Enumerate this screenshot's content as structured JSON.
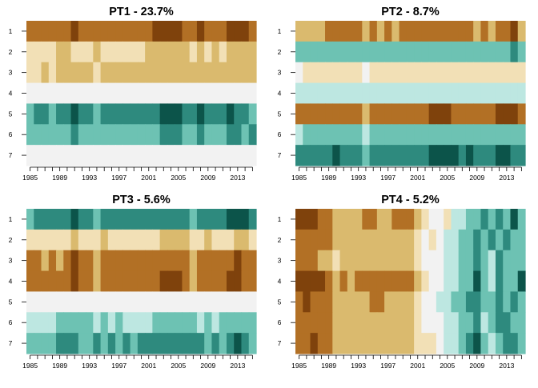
{
  "palette": {
    "1": "#7F420C",
    "2": "#B27025",
    "3": "#DABA6E",
    "4": "#F2E0B6",
    "5": "#F2F2F2",
    "6": "#BDE7E1",
    "7": "#6DC2B3",
    "8": "#2E8A7E",
    "9": "#0C544A"
  },
  "chart_data": [
    {
      "type": "heatmap",
      "title": "PT1 - 23.7%",
      "rows": [
        "1",
        "2",
        "3",
        "4",
        "5",
        "6",
        "7"
      ],
      "years": [
        1985,
        1986,
        1987,
        1988,
        1989,
        1990,
        1991,
        1992,
        1993,
        1994,
        1995,
        1996,
        1997,
        1998,
        1999,
        2000,
        2001,
        2002,
        2003,
        2004,
        2005,
        2006,
        2007,
        2008,
        2009,
        2010,
        2011,
        2012,
        2013,
        2014,
        2015
      ],
      "year_labels": [
        "1985",
        "1989",
        "1993",
        "1997",
        "2001",
        "2005",
        "2009",
        "2013"
      ],
      "cells": [
        [
          2,
          2,
          2,
          2,
          2,
          2,
          1,
          2,
          2,
          2,
          2,
          2,
          2,
          2,
          2,
          2,
          2,
          1,
          1,
          1,
          1,
          2,
          2,
          1,
          2,
          2,
          2,
          1,
          1,
          1,
          2
        ],
        [
          4,
          4,
          4,
          4,
          3,
          3,
          4,
          4,
          4,
          3,
          4,
          4,
          4,
          4,
          4,
          4,
          3,
          3,
          3,
          3,
          3,
          3,
          4,
          3,
          4,
          3,
          4,
          3,
          3,
          3,
          3
        ],
        [
          4,
          4,
          3,
          4,
          3,
          3,
          3,
          3,
          3,
          4,
          3,
          3,
          3,
          3,
          3,
          3,
          3,
          3,
          3,
          3,
          3,
          3,
          3,
          3,
          3,
          3,
          3,
          3,
          3,
          3,
          3
        ],
        [
          5,
          5,
          5,
          5,
          5,
          5,
          5,
          5,
          5,
          5,
          5,
          5,
          5,
          5,
          5,
          5,
          5,
          5,
          5,
          5,
          5,
          5,
          5,
          5,
          5,
          5,
          5,
          5,
          5,
          5,
          5
        ],
        [
          7,
          8,
          8,
          7,
          8,
          8,
          9,
          8,
          8,
          7,
          8,
          8,
          8,
          8,
          8,
          8,
          8,
          8,
          9,
          9,
          9,
          8,
          8,
          9,
          8,
          8,
          8,
          9,
          8,
          8,
          7
        ],
        [
          7,
          7,
          7,
          7,
          7,
          7,
          8,
          7,
          7,
          7,
          7,
          7,
          7,
          7,
          7,
          7,
          7,
          7,
          8,
          8,
          8,
          7,
          7,
          8,
          7,
          7,
          7,
          8,
          8,
          7,
          8
        ],
        [
          5,
          5,
          5,
          5,
          5,
          5,
          5,
          5,
          5,
          5,
          5,
          5,
          5,
          5,
          5,
          5,
          5,
          5,
          5,
          5,
          5,
          5,
          5,
          5,
          5,
          5,
          5,
          5,
          5,
          5,
          5
        ]
      ]
    },
    {
      "type": "heatmap",
      "title": "PT2 - 8.7%",
      "rows": [
        "1",
        "2",
        "3",
        "4",
        "5",
        "6",
        "7"
      ],
      "years": [
        1985,
        1986,
        1987,
        1988,
        1989,
        1990,
        1991,
        1992,
        1993,
        1994,
        1995,
        1996,
        1997,
        1998,
        1999,
        2000,
        2001,
        2002,
        2003,
        2004,
        2005,
        2006,
        2007,
        2008,
        2009,
        2010,
        2011,
        2012,
        2013,
        2014,
        2015
      ],
      "year_labels": [
        "1985",
        "1989",
        "1993",
        "1997",
        "2001",
        "2005",
        "2009",
        "2013"
      ],
      "cells": [
        [
          3,
          3,
          3,
          3,
          2,
          2,
          2,
          2,
          2,
          3,
          2,
          3,
          2,
          3,
          2,
          2,
          2,
          2,
          2,
          2,
          2,
          2,
          2,
          2,
          3,
          2,
          3,
          2,
          2,
          1,
          3
        ],
        [
          7,
          7,
          7,
          7,
          7,
          7,
          7,
          7,
          7,
          7,
          7,
          7,
          7,
          7,
          7,
          7,
          7,
          7,
          7,
          7,
          7,
          7,
          7,
          7,
          7,
          7,
          7,
          7,
          7,
          8,
          7
        ],
        [
          5,
          4,
          4,
          4,
          4,
          4,
          4,
          4,
          4,
          5,
          4,
          4,
          4,
          4,
          4,
          4,
          4,
          4,
          4,
          4,
          4,
          4,
          4,
          4,
          4,
          4,
          4,
          4,
          4,
          4,
          4
        ],
        [
          6,
          6,
          6,
          6,
          6,
          6,
          6,
          6,
          6,
          6,
          6,
          6,
          6,
          6,
          6,
          6,
          6,
          6,
          6,
          6,
          6,
          6,
          6,
          6,
          6,
          6,
          6,
          6,
          6,
          6,
          6
        ],
        [
          2,
          2,
          2,
          2,
          2,
          2,
          2,
          2,
          2,
          3,
          2,
          2,
          2,
          2,
          2,
          2,
          2,
          2,
          1,
          1,
          1,
          2,
          2,
          2,
          2,
          2,
          2,
          1,
          1,
          1,
          2
        ],
        [
          6,
          7,
          7,
          7,
          7,
          7,
          7,
          7,
          7,
          6,
          7,
          7,
          7,
          7,
          7,
          7,
          7,
          7,
          7,
          7,
          7,
          7,
          7,
          7,
          7,
          7,
          7,
          7,
          7,
          7,
          7
        ],
        [
          8,
          8,
          8,
          8,
          8,
          9,
          8,
          8,
          8,
          7,
          8,
          8,
          8,
          8,
          8,
          8,
          8,
          8,
          9,
          9,
          9,
          9,
          8,
          9,
          8,
          8,
          8,
          9,
          9,
          8,
          8
        ]
      ]
    },
    {
      "type": "heatmap",
      "title": "PT3 - 5.6%",
      "rows": [
        "1",
        "2",
        "3",
        "4",
        "5",
        "6",
        "7"
      ],
      "years": [
        1985,
        1986,
        1987,
        1988,
        1989,
        1990,
        1991,
        1992,
        1993,
        1994,
        1995,
        1996,
        1997,
        1998,
        1999,
        2000,
        2001,
        2002,
        2003,
        2004,
        2005,
        2006,
        2007,
        2008,
        2009,
        2010,
        2011,
        2012,
        2013,
        2014,
        2015
      ],
      "year_labels": [
        "1985",
        "1989",
        "1993",
        "1997",
        "2001",
        "2005",
        "2009",
        "2013"
      ],
      "cells": [
        [
          7,
          8,
          8,
          8,
          8,
          8,
          9,
          8,
          8,
          7,
          8,
          8,
          8,
          8,
          8,
          8,
          8,
          8,
          8,
          8,
          8,
          8,
          7,
          8,
          8,
          8,
          8,
          9,
          9,
          9,
          8
        ],
        [
          4,
          4,
          4,
          4,
          4,
          4,
          3,
          4,
          4,
          4,
          3,
          4,
          4,
          4,
          4,
          4,
          4,
          4,
          3,
          3,
          3,
          3,
          4,
          4,
          3,
          4,
          4,
          4,
          3,
          3,
          4
        ],
        [
          2,
          2,
          3,
          2,
          3,
          2,
          1,
          2,
          2,
          3,
          2,
          2,
          2,
          2,
          2,
          2,
          2,
          2,
          2,
          2,
          2,
          2,
          3,
          2,
          2,
          2,
          2,
          2,
          1,
          2,
          2
        ],
        [
          2,
          2,
          2,
          2,
          2,
          2,
          1,
          2,
          2,
          3,
          2,
          2,
          2,
          2,
          2,
          2,
          2,
          2,
          1,
          1,
          1,
          2,
          3,
          2,
          2,
          2,
          2,
          1,
          1,
          2,
          2
        ],
        [
          5,
          5,
          5,
          5,
          5,
          5,
          5,
          5,
          5,
          5,
          5,
          5,
          5,
          5,
          5,
          5,
          5,
          5,
          5,
          5,
          5,
          5,
          5,
          5,
          5,
          5,
          5,
          5,
          5,
          5,
          5
        ],
        [
          6,
          6,
          6,
          6,
          7,
          7,
          7,
          7,
          7,
          6,
          7,
          6,
          7,
          6,
          6,
          6,
          6,
          7,
          7,
          7,
          7,
          7,
          7,
          6,
          7,
          6,
          7,
          7,
          7,
          7,
          7
        ],
        [
          7,
          7,
          7,
          7,
          8,
          8,
          8,
          7,
          7,
          8,
          7,
          8,
          7,
          8,
          7,
          8,
          8,
          8,
          8,
          8,
          8,
          8,
          8,
          8,
          7,
          8,
          7,
          8,
          9,
          8,
          7
        ]
      ]
    },
    {
      "type": "heatmap",
      "title": "PT4 - 5.2%",
      "rows": [
        "1",
        "2",
        "3",
        "4",
        "5",
        "6",
        "7"
      ],
      "years": [
        1985,
        1986,
        1987,
        1988,
        1989,
        1990,
        1991,
        1992,
        1993,
        1994,
        1995,
        1996,
        1997,
        1998,
        1999,
        2000,
        2001,
        2002,
        2003,
        2004,
        2005,
        2006,
        2007,
        2008,
        2009,
        2010,
        2011,
        2012,
        2013,
        2014,
        2015
      ],
      "year_labels": [
        "1985",
        "1989",
        "1993",
        "1997",
        "2001",
        "2005",
        "2009",
        "2013"
      ],
      "cells": [
        [
          1,
          1,
          1,
          2,
          2,
          3,
          3,
          3,
          3,
          2,
          2,
          3,
          3,
          2,
          2,
          2,
          3,
          4,
          5,
          5,
          4,
          6,
          6,
          7,
          7,
          8,
          7,
          8,
          7,
          9,
          7
        ],
        [
          2,
          2,
          2,
          2,
          2,
          3,
          3,
          3,
          3,
          3,
          3,
          3,
          3,
          3,
          3,
          3,
          4,
          5,
          4,
          5,
          6,
          6,
          7,
          7,
          8,
          7,
          8,
          7,
          8,
          7,
          7
        ],
        [
          2,
          2,
          2,
          3,
          3,
          4,
          3,
          3,
          3,
          3,
          3,
          3,
          3,
          3,
          3,
          3,
          4,
          5,
          5,
          5,
          6,
          6,
          7,
          7,
          8,
          7,
          6,
          8,
          7,
          7,
          7
        ],
        [
          1,
          1,
          1,
          1,
          2,
          3,
          2,
          3,
          2,
          2,
          2,
          2,
          2,
          2,
          2,
          2,
          3,
          4,
          5,
          5,
          6,
          6,
          7,
          7,
          9,
          7,
          6,
          8,
          7,
          7,
          9
        ],
        [
          2,
          1,
          2,
          2,
          2,
          3,
          3,
          3,
          3,
          3,
          2,
          2,
          3,
          3,
          3,
          3,
          4,
          5,
          5,
          6,
          6,
          7,
          7,
          8,
          8,
          7,
          7,
          8,
          7,
          8,
          7
        ],
        [
          2,
          2,
          2,
          2,
          2,
          3,
          3,
          3,
          3,
          3,
          3,
          3,
          3,
          3,
          3,
          3,
          4,
          5,
          5,
          5,
          6,
          6,
          7,
          7,
          8,
          6,
          7,
          8,
          8,
          7,
          7
        ],
        [
          2,
          2,
          1,
          2,
          2,
          3,
          3,
          3,
          3,
          3,
          3,
          3,
          3,
          3,
          3,
          3,
          4,
          4,
          4,
          5,
          6,
          6,
          7,
          8,
          9,
          7,
          6,
          7,
          8,
          8,
          7
        ]
      ]
    }
  ]
}
